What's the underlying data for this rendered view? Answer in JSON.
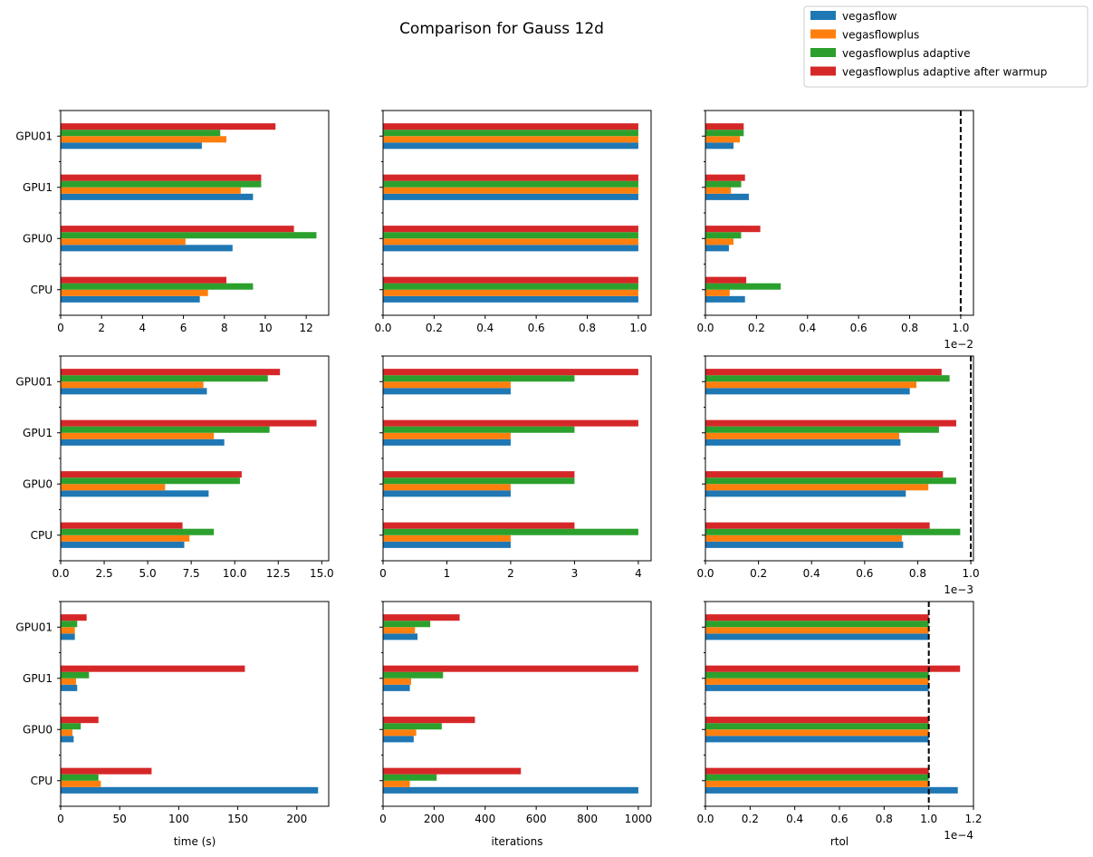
{
  "figure": {
    "title": "Comparison for Gauss 12d",
    "colors": {
      "vegasflow": "#1f77b4",
      "vegasflowplus": "#ff7f0e",
      "vegasflowplus adaptive": "#2ca02c",
      "vegasflowplus adaptive after warmup": "#d62728"
    },
    "legend": {
      "placement": "top-right",
      "entries": [
        "vegasflow",
        "vegasflowplus",
        "vegasflowplus adaptive",
        "vegasflowplus adaptive after warmup"
      ]
    }
  },
  "chart_data": [
    {
      "type": "bar",
      "orientation": "horizontal",
      "row": 0,
      "col": 0,
      "categories": [
        "CPU",
        "GPU0",
        "GPU1",
        "GPU01"
      ],
      "xlim": [
        0,
        13.1
      ],
      "xticks": [
        0,
        2,
        4,
        6,
        8,
        10,
        12
      ],
      "tick_labels": [
        "0",
        "2",
        "4",
        "6",
        "8",
        "10",
        "12"
      ],
      "xlabel": "",
      "offset_text": "",
      "series": [
        {
          "name": "vegasflow",
          "values": [
            6.8,
            8.4,
            9.4,
            6.9
          ]
        },
        {
          "name": "vegasflowplus",
          "values": [
            7.2,
            6.1,
            8.8,
            8.1
          ]
        },
        {
          "name": "vegasflowplus adaptive",
          "values": [
            9.4,
            12.5,
            9.8,
            7.8
          ]
        },
        {
          "name": "vegasflowplus adaptive after warmup",
          "values": [
            8.1,
            11.4,
            9.8,
            10.5
          ]
        }
      ]
    },
    {
      "type": "bar",
      "orientation": "horizontal",
      "row": 0,
      "col": 1,
      "categories": [
        "CPU",
        "GPU0",
        "GPU1",
        "GPU01"
      ],
      "xlim": [
        0,
        1.05
      ],
      "xticks": [
        0,
        0.2,
        0.4,
        0.6,
        0.8,
        1.0
      ],
      "tick_labels": [
        "0.0",
        "0.2",
        "0.4",
        "0.6",
        "0.8",
        "1.0"
      ],
      "xlabel": "",
      "offset_text": "",
      "series": [
        {
          "name": "vegasflow",
          "values": [
            1.0,
            1.0,
            1.0,
            1.0
          ]
        },
        {
          "name": "vegasflowplus",
          "values": [
            1.0,
            1.0,
            1.0,
            1.0
          ]
        },
        {
          "name": "vegasflowplus adaptive",
          "values": [
            1.0,
            1.0,
            1.0,
            1.0
          ]
        },
        {
          "name": "vegasflowplus adaptive after warmup",
          "values": [
            1.0,
            1.0,
            1.0,
            1.0
          ]
        }
      ]
    },
    {
      "type": "bar",
      "orientation": "horizontal",
      "row": 0,
      "col": 2,
      "categories": [
        "CPU",
        "GPU0",
        "GPU1",
        "GPU01"
      ],
      "xlim": [
        0,
        1.05
      ],
      "xticks": [
        0,
        0.2,
        0.4,
        0.6,
        0.8,
        1.0
      ],
      "tick_labels": [
        "0.0",
        "0.2",
        "0.4",
        "0.6",
        "0.8",
        "1.0"
      ],
      "xlabel": "",
      "offset_text": "1e−2",
      "value_scale": 0.01,
      "reference_line": 1.0,
      "series": [
        {
          "name": "vegasflow",
          "values": [
            0.155,
            0.092,
            0.17,
            0.11
          ]
        },
        {
          "name": "vegasflowplus",
          "values": [
            0.095,
            0.11,
            0.1,
            0.135
          ]
        },
        {
          "name": "vegasflowplus adaptive",
          "values": [
            0.295,
            0.14,
            0.14,
            0.15
          ]
        },
        {
          "name": "vegasflowplus adaptive after warmup",
          "values": [
            0.16,
            0.215,
            0.155,
            0.15
          ]
        }
      ]
    },
    {
      "type": "bar",
      "orientation": "horizontal",
      "row": 1,
      "col": 0,
      "categories": [
        "CPU",
        "GPU0",
        "GPU1",
        "GPU01"
      ],
      "xlim": [
        0,
        15.4
      ],
      "xticks": [
        0,
        2.5,
        5,
        7.5,
        10,
        12.5,
        15
      ],
      "tick_labels": [
        "0.0",
        "2.5",
        "5.0",
        "7.5",
        "10.0",
        "12.5",
        "15.0"
      ],
      "xlabel": "",
      "offset_text": "",
      "series": [
        {
          "name": "vegasflow",
          "values": [
            7.1,
            8.5,
            9.4,
            8.4
          ]
        },
        {
          "name": "vegasflowplus",
          "values": [
            7.4,
            6.0,
            8.8,
            8.2
          ]
        },
        {
          "name": "vegasflowplus adaptive",
          "values": [
            8.8,
            10.3,
            12.0,
            11.9
          ]
        },
        {
          "name": "vegasflowplus adaptive after warmup",
          "values": [
            7.0,
            10.4,
            14.7,
            12.6
          ]
        }
      ]
    },
    {
      "type": "bar",
      "orientation": "horizontal",
      "row": 1,
      "col": 1,
      "categories": [
        "CPU",
        "GPU0",
        "GPU1",
        "GPU01"
      ],
      "xlim": [
        0,
        4.2
      ],
      "xticks": [
        0,
        1,
        2,
        3,
        4
      ],
      "tick_labels": [
        "0",
        "1",
        "2",
        "3",
        "4"
      ],
      "xlabel": "",
      "offset_text": "",
      "series": [
        {
          "name": "vegasflow",
          "values": [
            2,
            2,
            2,
            2
          ]
        },
        {
          "name": "vegasflowplus",
          "values": [
            2,
            2,
            2,
            2
          ]
        },
        {
          "name": "vegasflowplus adaptive",
          "values": [
            4,
            3,
            3,
            3
          ]
        },
        {
          "name": "vegasflowplus adaptive after warmup",
          "values": [
            3,
            3,
            4,
            4
          ]
        }
      ]
    },
    {
      "type": "bar",
      "orientation": "horizontal",
      "row": 1,
      "col": 2,
      "categories": [
        "CPU",
        "GPU0",
        "GPU1",
        "GPU01"
      ],
      "xlim": [
        0,
        1.01
      ],
      "xticks": [
        0,
        0.2,
        0.4,
        0.6,
        0.8,
        1.0
      ],
      "tick_labels": [
        "0.0",
        "0.2",
        "0.4",
        "0.6",
        "0.8",
        "1.0"
      ],
      "xlabel": "",
      "offset_text": "1e−3",
      "value_scale": 0.001,
      "reference_line": 1.0,
      "series": [
        {
          "name": "vegasflow",
          "values": [
            0.745,
            0.755,
            0.735,
            0.77
          ]
        },
        {
          "name": "vegasflowplus",
          "values": [
            0.74,
            0.84,
            0.73,
            0.795
          ]
        },
        {
          "name": "vegasflowplus adaptive",
          "values": [
            0.96,
            0.945,
            0.88,
            0.92
          ]
        },
        {
          "name": "vegasflowplus adaptive after warmup",
          "values": [
            0.845,
            0.895,
            0.945,
            0.89
          ]
        }
      ]
    },
    {
      "type": "bar",
      "orientation": "horizontal",
      "row": 2,
      "col": 0,
      "categories": [
        "CPU",
        "GPU0",
        "GPU1",
        "GPU01"
      ],
      "xlim": [
        0,
        227
      ],
      "xticks": [
        0,
        50,
        100,
        150,
        200
      ],
      "tick_labels": [
        "0",
        "50",
        "100",
        "150",
        "200"
      ],
      "xlabel": "time (s)",
      "offset_text": "",
      "series": [
        {
          "name": "vegasflow",
          "values": [
            218,
            11,
            14,
            12
          ]
        },
        {
          "name": "vegasflowplus",
          "values": [
            34,
            10,
            13,
            12
          ]
        },
        {
          "name": "vegasflowplus adaptive",
          "values": [
            32,
            17,
            24,
            14
          ]
        },
        {
          "name": "vegasflowplus adaptive after warmup",
          "values": [
            77,
            32,
            156,
            22
          ]
        }
      ]
    },
    {
      "type": "bar",
      "orientation": "horizontal",
      "row": 2,
      "col": 1,
      "categories": [
        "CPU",
        "GPU0",
        "GPU1",
        "GPU01"
      ],
      "xlim": [
        0,
        1050
      ],
      "xticks": [
        0,
        200,
        400,
        600,
        800,
        1000
      ],
      "tick_labels": [
        "0",
        "200",
        "400",
        "600",
        "800",
        "1000"
      ],
      "xlabel": "iterations",
      "offset_text": "",
      "series": [
        {
          "name": "vegasflow",
          "values": [
            1000,
            120,
            105,
            135
          ]
        },
        {
          "name": "vegasflowplus",
          "values": [
            105,
            130,
            110,
            125
          ]
        },
        {
          "name": "vegasflowplus adaptive",
          "values": [
            210,
            230,
            235,
            185
          ]
        },
        {
          "name": "vegasflowplus adaptive after warmup",
          "values": [
            540,
            360,
            1000,
            300
          ]
        }
      ]
    },
    {
      "type": "bar",
      "orientation": "horizontal",
      "row": 2,
      "col": 2,
      "categories": [
        "CPU",
        "GPU0",
        "GPU1",
        "GPU01"
      ],
      "xlim": [
        0,
        1.2
      ],
      "xticks": [
        0,
        0.2,
        0.4,
        0.6,
        0.8,
        1.0,
        1.2
      ],
      "tick_labels": [
        "0.0",
        "0.2",
        "0.4",
        "0.6",
        "0.8",
        "1.0",
        "1.2"
      ],
      "xlabel": "rtol",
      "offset_text": "1e−4",
      "value_scale": 0.0001,
      "reference_line": 1.0,
      "series": [
        {
          "name": "vegasflow",
          "values": [
            1.13,
            1.0,
            1.0,
            1.0
          ]
        },
        {
          "name": "vegasflowplus",
          "values": [
            1.0,
            1.0,
            1.0,
            1.0
          ]
        },
        {
          "name": "vegasflowplus adaptive",
          "values": [
            1.0,
            1.0,
            1.0,
            1.0
          ]
        },
        {
          "name": "vegasflowplus adaptive after warmup",
          "values": [
            1.0,
            1.0,
            1.14,
            1.0
          ]
        }
      ]
    }
  ]
}
